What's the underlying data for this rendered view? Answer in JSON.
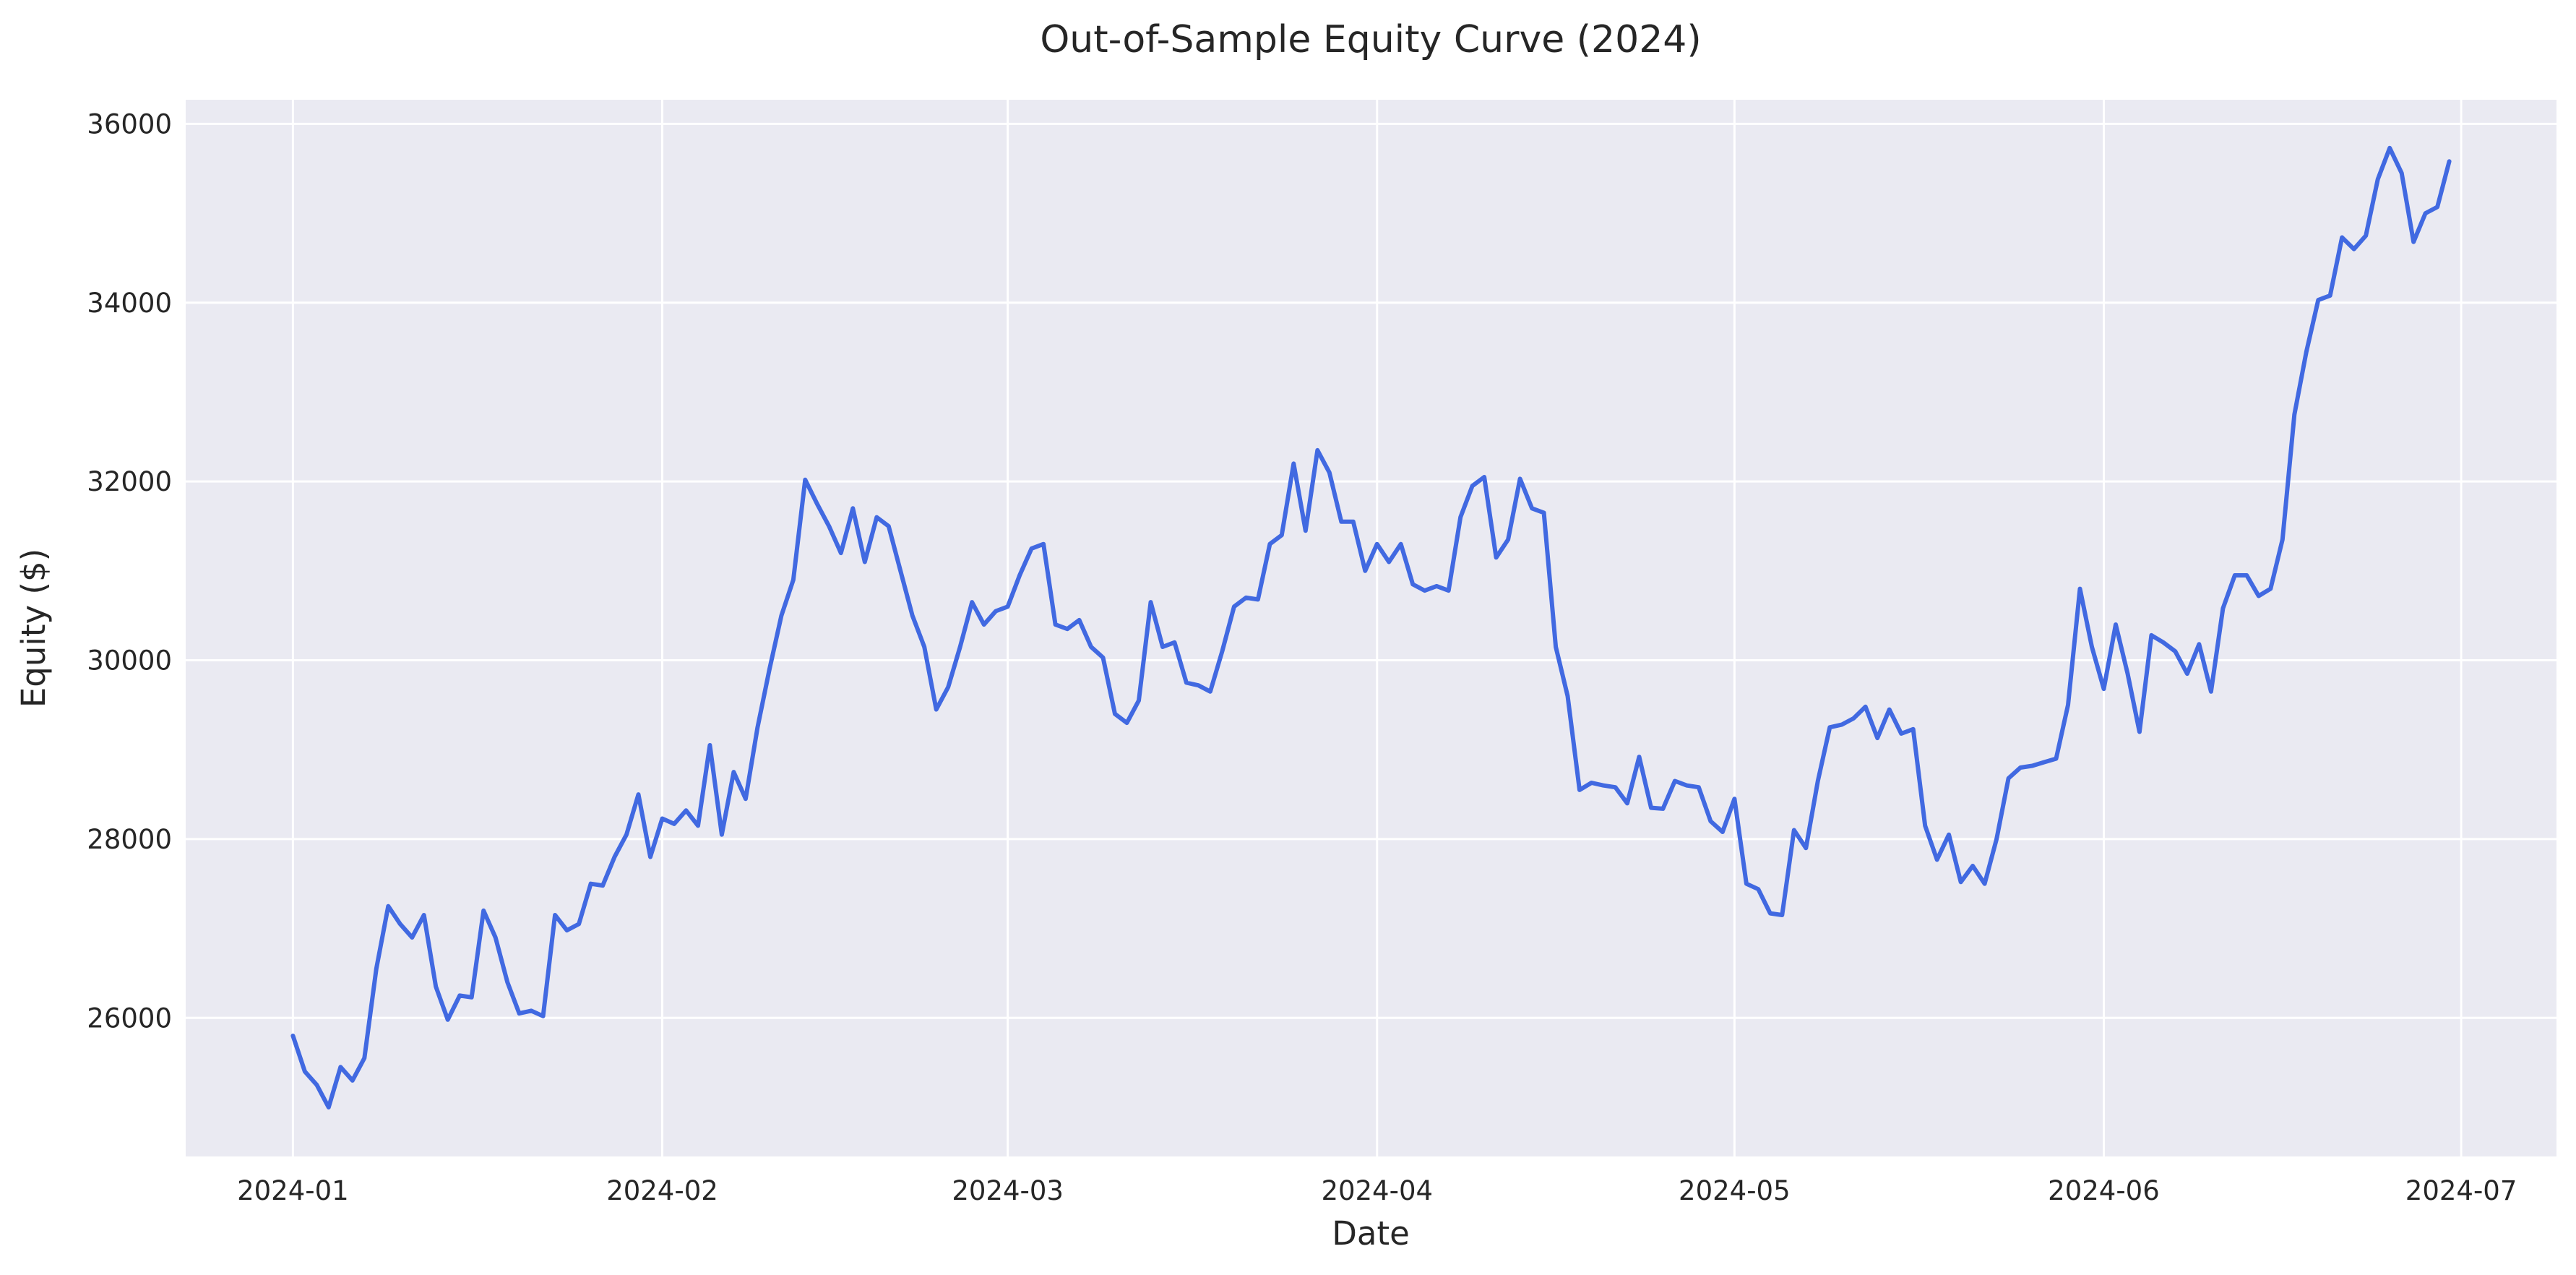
{
  "chart_data": {
    "type": "line",
    "title": "Out-of-Sample Equity Curve (2024)",
    "xlabel": "Date",
    "ylabel": "Equity ($)",
    "x_ticks": [
      "2024-01",
      "2024-02",
      "2024-03",
      "2024-04",
      "2024-05",
      "2024-06",
      "2024-07"
    ],
    "y_ticks": [
      "26000",
      "28000",
      "30000",
      "32000",
      "34000",
      "36000"
    ],
    "xlim": [
      "2023-12-23",
      "2024-07-09"
    ],
    "ylim": [
      24450,
      36270
    ],
    "grid": true,
    "background": "#eaeaf2",
    "line_color": "#4169e1",
    "series": [
      {
        "x": [
          "2024-01-01",
          "2024-01-02",
          "2024-01-03",
          "2024-01-04",
          "2024-01-05",
          "2024-01-06",
          "2024-01-07",
          "2024-01-08",
          "2024-01-09",
          "2024-01-10",
          "2024-01-11",
          "2024-01-12",
          "2024-01-13",
          "2024-01-14",
          "2024-01-15",
          "2024-01-16",
          "2024-01-17",
          "2024-01-18",
          "2024-01-19",
          "2024-01-20",
          "2024-01-21",
          "2024-01-22",
          "2024-01-23",
          "2024-01-24",
          "2024-01-25",
          "2024-01-26",
          "2024-01-27",
          "2024-01-28",
          "2024-01-29",
          "2024-01-30",
          "2024-01-31",
          "2024-02-01",
          "2024-02-02",
          "2024-02-03",
          "2024-02-04",
          "2024-02-05",
          "2024-02-06",
          "2024-02-07",
          "2024-02-08",
          "2024-02-09",
          "2024-02-10",
          "2024-02-11",
          "2024-02-12",
          "2024-02-13",
          "2024-02-14",
          "2024-02-15",
          "2024-02-16",
          "2024-02-17",
          "2024-02-18",
          "2024-02-19",
          "2024-02-20",
          "2024-02-21",
          "2024-02-22",
          "2024-02-23",
          "2024-02-24",
          "2024-02-25",
          "2024-02-26",
          "2024-02-27",
          "2024-02-28",
          "2024-02-29",
          "2024-03-01",
          "2024-03-02",
          "2024-03-03",
          "2024-03-04",
          "2024-03-05",
          "2024-03-06",
          "2024-03-07",
          "2024-03-08",
          "2024-03-09",
          "2024-03-10",
          "2024-03-11",
          "2024-03-12",
          "2024-03-13",
          "2024-03-14",
          "2024-03-15",
          "2024-03-16",
          "2024-03-17",
          "2024-03-18",
          "2024-03-19",
          "2024-03-20",
          "2024-03-21",
          "2024-03-22",
          "2024-03-23",
          "2024-03-24",
          "2024-03-25",
          "2024-03-26",
          "2024-03-27",
          "2024-03-28",
          "2024-03-29",
          "2024-03-30",
          "2024-03-31",
          "2024-04-01",
          "2024-04-02",
          "2024-04-03",
          "2024-04-04",
          "2024-04-05",
          "2024-04-06",
          "2024-04-07",
          "2024-04-08",
          "2024-04-09",
          "2024-04-10",
          "2024-04-11",
          "2024-04-12",
          "2024-04-13",
          "2024-04-14",
          "2024-04-15",
          "2024-04-16",
          "2024-04-17",
          "2024-04-18",
          "2024-04-19",
          "2024-04-20",
          "2024-04-21",
          "2024-04-22",
          "2024-04-23",
          "2024-04-24",
          "2024-04-25",
          "2024-04-26",
          "2024-04-27",
          "2024-04-28",
          "2024-04-29",
          "2024-04-30",
          "2024-05-01",
          "2024-05-02",
          "2024-05-03",
          "2024-05-04",
          "2024-05-05",
          "2024-05-06",
          "2024-05-07",
          "2024-05-08",
          "2024-05-09",
          "2024-05-10",
          "2024-05-11",
          "2024-05-12",
          "2024-05-13",
          "2024-05-14",
          "2024-05-15",
          "2024-05-16",
          "2024-05-17",
          "2024-05-18",
          "2024-05-19",
          "2024-05-20",
          "2024-05-21",
          "2024-05-22",
          "2024-05-23",
          "2024-05-24",
          "2024-05-25",
          "2024-05-26",
          "2024-05-27",
          "2024-05-28",
          "2024-05-29",
          "2024-05-30",
          "2024-05-31",
          "2024-06-01",
          "2024-06-02",
          "2024-06-03",
          "2024-06-04",
          "2024-06-05",
          "2024-06-06",
          "2024-06-07",
          "2024-06-08",
          "2024-06-09",
          "2024-06-10",
          "2024-06-11",
          "2024-06-12",
          "2024-06-13",
          "2024-06-14",
          "2024-06-15",
          "2024-06-16",
          "2024-06-17",
          "2024-06-18",
          "2024-06-19",
          "2024-06-20",
          "2024-06-21",
          "2024-06-22",
          "2024-06-23",
          "2024-06-24",
          "2024-06-25",
          "2024-06-26",
          "2024-06-27",
          "2024-06-28",
          "2024-06-29",
          "2024-06-30"
        ],
        "values": [
          25800,
          25400,
          25250,
          25000,
          25450,
          25300,
          25550,
          26550,
          27250,
          27050,
          26900,
          27150,
          26350,
          25980,
          26250,
          26230,
          27200,
          26900,
          26400,
          26050,
          26080,
          26020,
          27150,
          26980,
          27050,
          27500,
          27480,
          27800,
          28050,
          28500,
          27800,
          28230,
          28170,
          28320,
          28150,
          29050,
          28050,
          28750,
          28450,
          29250,
          29900,
          30500,
          30900,
          32020,
          31750,
          31500,
          31200,
          31700,
          31100,
          31600,
          31500,
          31000,
          30500,
          30150,
          29450,
          29700,
          30150,
          30650,
          30400,
          30550,
          30600,
          30950,
          31250,
          31300,
          30400,
          30350,
          30450,
          30150,
          30030,
          29400,
          29300,
          29550,
          30650,
          30150,
          30200,
          29750,
          29720,
          29650,
          30100,
          30600,
          30700,
          30680,
          31300,
          31400,
          32200,
          31450,
          32350,
          32100,
          31550,
          31550,
          31000,
          31300,
          31100,
          31300,
          30850,
          30780,
          30830,
          30780,
          31600,
          31950,
          32050,
          31150,
          31350,
          32030,
          31700,
          31650,
          30150,
          29600,
          28550,
          28630,
          28600,
          28580,
          28400,
          28920,
          28350,
          28340,
          28650,
          28600,
          28580,
          28200,
          28080,
          28450,
          27500,
          27440,
          27170,
          27150,
          28100,
          27900,
          28650,
          29250,
          29280,
          29350,
          29480,
          29130,
          29450,
          29180,
          29230,
          28150,
          27770,
          28050,
          27520,
          27700,
          27500,
          28000,
          28680,
          28800,
          28820,
          28860,
          28900,
          29500,
          30800,
          30150,
          29680,
          30400,
          29850,
          29200,
          30280,
          30200,
          30100,
          29850,
          30180,
          29650,
          30580,
          30950,
          30950,
          30720,
          30800,
          31350,
          32750,
          33450,
          34030,
          34080,
          34730,
          34600,
          34750,
          35380,
          35730,
          35450,
          34680,
          35000,
          35070,
          35580
        ]
      }
    ]
  }
}
